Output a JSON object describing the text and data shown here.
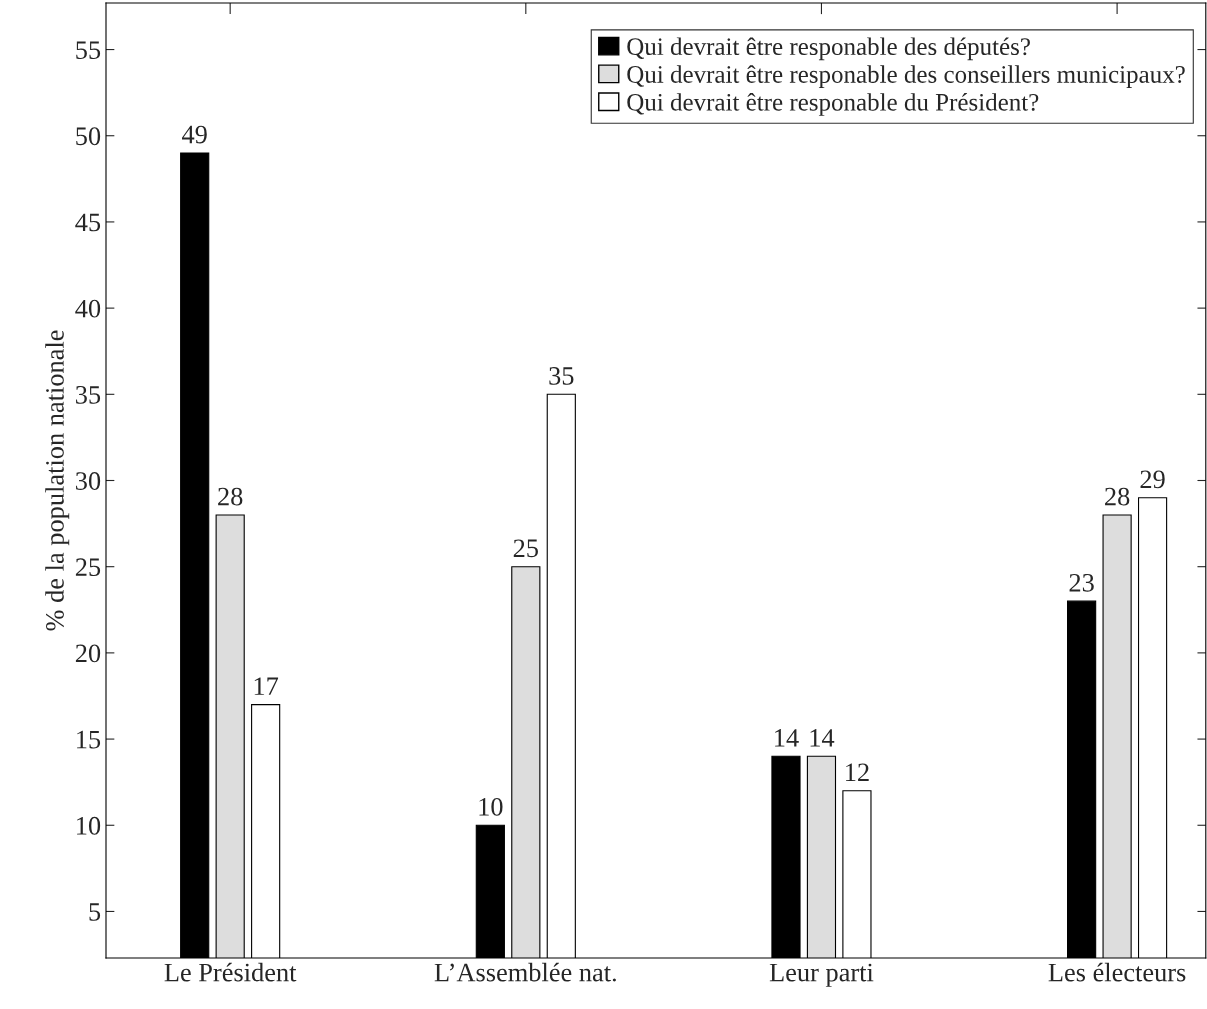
{
  "chart_data": {
    "type": "bar",
    "ylabel": "% de la population nationale",
    "categories": [
      "Le Président",
      "L’Assemblée nat.",
      "Leur parti",
      "Les électeurs"
    ],
    "series": [
      {
        "name": "Qui devrait être responable des députés?",
        "color": "#000000",
        "values": [
          49,
          10,
          14,
          23
        ]
      },
      {
        "name": "Qui devrait être responable des conseillers municipaux?",
        "color": "#dddddd",
        "values": [
          28,
          25,
          14,
          28
        ]
      },
      {
        "name": "Qui devrait être responable du Président?",
        "color": "#ffffff",
        "values": [
          17,
          35,
          12,
          29
        ]
      }
    ],
    "ylim": [
      2.3,
      57.7
    ],
    "yticks": [
      5,
      10,
      15,
      20,
      25,
      30,
      35,
      40,
      45,
      50,
      55
    ],
    "data_labels": true,
    "legend": "top right",
    "grid": false
  }
}
